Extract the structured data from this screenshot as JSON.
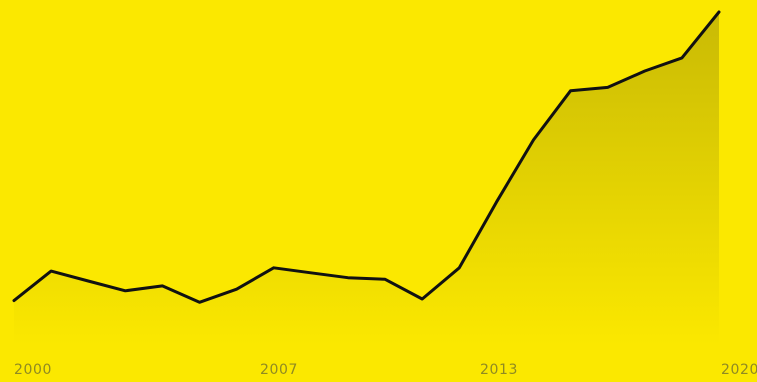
{
  "chart_data": {
    "type": "area",
    "title": "",
    "xlabel": "",
    "ylabel": "",
    "x_ticks": [
      "2000",
      "2007",
      "2013",
      "2020"
    ],
    "xlim": [
      2000,
      2020
    ],
    "ylim": [
      0,
      100
    ],
    "grid": false,
    "legend": "none",
    "series": [
      {
        "x": [
          2000,
          2001,
          2002,
          2003,
          2004,
          2005,
          2006,
          2007,
          2008,
          2009,
          2010,
          2011,
          2012,
          2013,
          2014,
          2015,
          2016,
          2017,
          2018,
          2019
        ],
        "values": [
          12,
          21,
          18,
          15,
          16.5,
          11.5,
          15.5,
          22,
          20.5,
          19,
          18.5,
          12.5,
          22,
          42,
          61,
          76,
          77,
          82,
          86,
          100
        ]
      }
    ]
  },
  "colors": {
    "background": "#FBE800",
    "line": "#111111",
    "area_top": "#C9BA05",
    "area_bottom": "#FBE800",
    "tick_text": "#8F8A22"
  }
}
